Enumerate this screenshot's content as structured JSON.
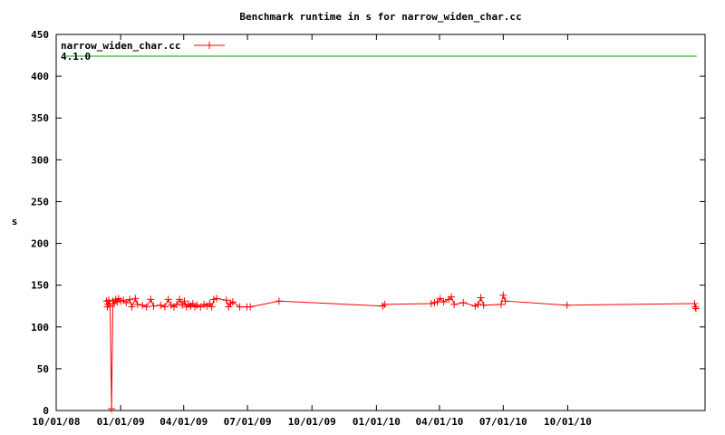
{
  "chart_data": {
    "type": "line",
    "title": "Benchmark runtime in s for narrow_widen_char.cc",
    "xlabel": "",
    "ylabel": "s",
    "ylim": [
      0,
      450
    ],
    "yticks": [
      "0",
      "50",
      "100",
      "150",
      "200",
      "250",
      "300",
      "350",
      "400",
      "450"
    ],
    "xlim": [
      "2008-10-01",
      "2011-04-15"
    ],
    "xticks": [
      {
        "date": "2008-10-01",
        "label": "10/01/08"
      },
      {
        "date": "2009-01-01",
        "label": "01/01/09"
      },
      {
        "date": "2009-04-01",
        "label": "04/01/09"
      },
      {
        "date": "2009-07-01",
        "label": "07/01/09"
      },
      {
        "date": "2009-10-01",
        "label": "10/01/09"
      },
      {
        "date": "2010-01-01",
        "label": "01/01/10"
      },
      {
        "date": "2010-04-01",
        "label": "04/01/10"
      },
      {
        "date": "2010-07-01",
        "label": "07/01/10"
      },
      {
        "date": "2010-10-01",
        "label": "10/01/10"
      }
    ],
    "grid": false,
    "legend": "top-left",
    "series": [
      {
        "name": "narrow_widen_char.cc",
        "color": "#ff0000",
        "marker": "plus",
        "points": [
          [
            "2008-12-12",
            131
          ],
          [
            "2008-12-13",
            124
          ],
          [
            "2008-12-14",
            127
          ],
          [
            "2008-12-15",
            132
          ],
          [
            "2008-12-17",
            125
          ],
          [
            "2008-12-19",
            2
          ],
          [
            "2008-12-21",
            131
          ],
          [
            "2008-12-23",
            128
          ],
          [
            "2008-12-25",
            133
          ],
          [
            "2008-12-27",
            130
          ],
          [
            "2008-12-29",
            134
          ],
          [
            "2009-01-01",
            131
          ],
          [
            "2009-01-05",
            132
          ],
          [
            "2009-01-09",
            129
          ],
          [
            "2009-01-14",
            133
          ],
          [
            "2009-01-17",
            124
          ],
          [
            "2009-01-22",
            134
          ],
          [
            "2009-01-25",
            127
          ],
          [
            "2009-02-01",
            126
          ],
          [
            "2009-02-07",
            124
          ],
          [
            "2009-02-13",
            133
          ],
          [
            "2009-02-17",
            125
          ],
          [
            "2009-02-27",
            126
          ],
          [
            "2009-03-05",
            124
          ],
          [
            "2009-03-10",
            133
          ],
          [
            "2009-03-14",
            126
          ],
          [
            "2009-03-18",
            124
          ],
          [
            "2009-03-22",
            127
          ],
          [
            "2009-03-26",
            133
          ],
          [
            "2009-03-30",
            126
          ],
          [
            "2009-04-02",
            131
          ],
          [
            "2009-04-05",
            124
          ],
          [
            "2009-04-08",
            127
          ],
          [
            "2009-04-11",
            125
          ],
          [
            "2009-04-14",
            128
          ],
          [
            "2009-04-17",
            124
          ],
          [
            "2009-04-20",
            126
          ],
          [
            "2009-04-25",
            124
          ],
          [
            "2009-04-30",
            127
          ],
          [
            "2009-05-04",
            125
          ],
          [
            "2009-05-08",
            128
          ],
          [
            "2009-05-11",
            124
          ],
          [
            "2009-05-14",
            133
          ],
          [
            "2009-05-18",
            134
          ],
          [
            "2009-06-01",
            132
          ],
          [
            "2009-06-04",
            124
          ],
          [
            "2009-06-07",
            128
          ],
          [
            "2009-06-10",
            130
          ],
          [
            "2009-06-20",
            124
          ],
          [
            "2009-06-30",
            124
          ],
          [
            "2009-07-05",
            124
          ],
          [
            "2009-08-15",
            131
          ],
          [
            "2010-01-10",
            125
          ],
          [
            "2010-01-13",
            127
          ],
          [
            "2010-03-20",
            128
          ],
          [
            "2010-03-25",
            129
          ],
          [
            "2010-03-29",
            130
          ],
          [
            "2010-04-02",
            134
          ],
          [
            "2010-04-07",
            130
          ],
          [
            "2010-04-14",
            133
          ],
          [
            "2010-04-18",
            136
          ],
          [
            "2010-04-22",
            127
          ],
          [
            "2010-05-05",
            129
          ],
          [
            "2010-05-22",
            125
          ],
          [
            "2010-05-26",
            127
          ],
          [
            "2010-05-30",
            135
          ],
          [
            "2010-06-03",
            126
          ],
          [
            "2010-06-28",
            127
          ],
          [
            "2010-07-01",
            138
          ],
          [
            "2010-07-04",
            131
          ],
          [
            "2010-09-30",
            126
          ],
          [
            "2011-03-31",
            128
          ],
          [
            "2011-04-01",
            124
          ],
          [
            "2011-04-02",
            122
          ]
        ]
      },
      {
        "name": "4.1.0",
        "color": "#00a000",
        "marker": "none",
        "points": [
          [
            "2008-10-15",
            424
          ],
          [
            "2011-04-03",
            424
          ]
        ]
      }
    ]
  }
}
